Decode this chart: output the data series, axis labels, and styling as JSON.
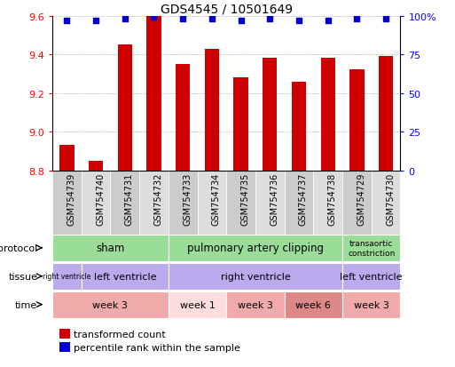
{
  "title": "GDS4545 / 10501649",
  "samples": [
    "GSM754739",
    "GSM754740",
    "GSM754731",
    "GSM754732",
    "GSM754733",
    "GSM754734",
    "GSM754735",
    "GSM754736",
    "GSM754737",
    "GSM754738",
    "GSM754729",
    "GSM754730"
  ],
  "bar_values": [
    8.93,
    8.85,
    9.45,
    9.6,
    9.35,
    9.43,
    9.28,
    9.38,
    9.26,
    9.38,
    9.32,
    9.39
  ],
  "bar_base": 8.8,
  "dot_values": [
    97,
    97,
    98,
    99,
    98,
    98,
    97,
    98,
    97,
    97,
    98,
    98
  ],
  "ylim": [
    8.8,
    9.6
  ],
  "y2lim": [
    0,
    100
  ],
  "yticks": [
    8.8,
    9.0,
    9.2,
    9.4,
    9.6
  ],
  "y2ticks": [
    0,
    25,
    50,
    75,
    100
  ],
  "bar_color": "#cc0000",
  "dot_color": "#0000cc",
  "protocol_color": "#99dd99",
  "tissue_color": "#bbaaee",
  "time_colors": [
    "#f0aaaa",
    "#ffdddd",
    "#f0aaaa",
    "#dd8888",
    "#f0aaaa"
  ],
  "legend_tc": "transformed count",
  "legend_pr": "percentile rank within the sample",
  "xtick_bg_even": "#cccccc",
  "xtick_bg_odd": "#dddddd"
}
